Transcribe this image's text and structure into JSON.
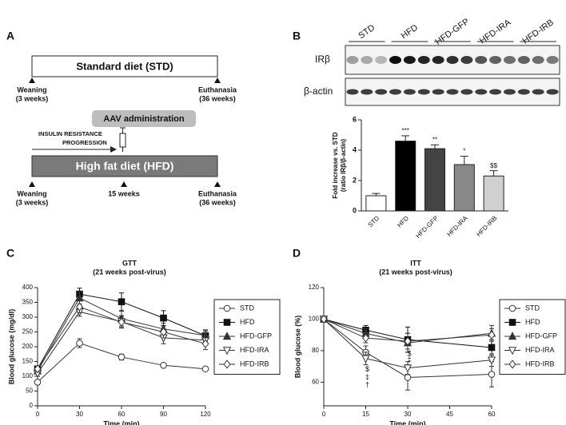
{
  "panel_labels": [
    "A",
    "B",
    "C",
    "D"
  ],
  "diagram": {
    "std_bar": "Standard diet (STD)",
    "std_start": [
      "Weaning",
      "(3 weeks)"
    ],
    "std_end": [
      "Euthanasia",
      "(36 weeks)"
    ],
    "aav": "AAV  administration",
    "progression": [
      "INSULIN RESISTANCE",
      "PROGRESSION"
    ],
    "hfd_bar": "High fat diet (HFD)",
    "hfd_start": [
      "Weaning",
      "(3 weeks)"
    ],
    "hfd_mid": "15 weeks",
    "hfd_end": [
      "Euthanasia",
      "(36 weeks)"
    ]
  },
  "blot": {
    "lanes": [
      "STD",
      "HFD",
      "HFD-GFP",
      "HFD-IRA",
      "HFD-IRB"
    ],
    "rows": [
      "IRβ",
      "β-actin"
    ]
  },
  "chart_data": [
    {
      "type": "bar",
      "ylabel": [
        "Fold increase vs. STD",
        "(ratio IRβ/β-actin)"
      ],
      "categories": [
        "STD",
        "HFD",
        "HFD-GFP",
        "HFD-IRA",
        "HFD-IRB"
      ],
      "values": [
        1.0,
        4.6,
        4.1,
        3.05,
        2.3
      ],
      "errors": [
        0.15,
        0.35,
        0.25,
        0.55,
        0.35
      ],
      "significance": [
        null,
        "***",
        "**",
        "*",
        "$$"
      ],
      "colors": [
        "#ffffff",
        "#000000",
        "#444444",
        "#888888",
        "#d0d0d0"
      ],
      "ylim": [
        0,
        6
      ],
      "yticks": [
        0,
        2,
        4,
        6
      ]
    },
    {
      "type": "line",
      "title": "GTT",
      "subtitle": "(21 weeks post-virus)",
      "xlabel": "Time (min)",
      "ylabel": "Blood glucose  (mg/dl)",
      "x": [
        0,
        30,
        60,
        90,
        120
      ],
      "xlim": [
        0,
        120
      ],
      "xticks": [
        0,
        30,
        60,
        90,
        120
      ],
      "ylim": [
        0,
        400
      ],
      "yticks": [
        0,
        50,
        100,
        150,
        200,
        250,
        300,
        350,
        400
      ],
      "series": [
        {
          "name": "STD",
          "color": "#333333",
          "marker": "circle",
          "filled": false,
          "values": [
            80,
            212,
            165,
            137,
            125
          ],
          "errors": [
            8,
            15,
            10,
            5,
            5
          ]
        },
        {
          "name": "HFD",
          "color": "#111111",
          "marker": "square",
          "filled": true,
          "values": [
            125,
            378,
            352,
            297,
            237
          ],
          "errors": [
            10,
            20,
            30,
            25,
            20
          ]
        },
        {
          "name": "HFD-GFP",
          "color": "#333333",
          "marker": "triangle-up",
          "filled": true,
          "values": [
            118,
            365,
            295,
            260,
            238
          ],
          "errors": [
            10,
            20,
            25,
            20,
            15
          ]
        },
        {
          "name": "HFD-IRA",
          "color": "#333333",
          "marker": "triangle-down",
          "filled": false,
          "values": [
            110,
            318,
            285,
            230,
            222
          ],
          "errors": [
            10,
            15,
            20,
            20,
            15
          ]
        },
        {
          "name": "HFD-IRB",
          "color": "#333333",
          "marker": "diamond",
          "filled": false,
          "values": [
            125,
            335,
            283,
            250,
            210
          ],
          "errors": [
            10,
            20,
            20,
            20,
            20
          ]
        }
      ]
    },
    {
      "type": "line",
      "title": "ITT",
      "subtitle": "(21 weeks post-virus)",
      "xlabel": "Time (min)",
      "ylabel": "Blood glucose (%)",
      "x": [
        0,
        15,
        30,
        60
      ],
      "xlim": [
        0,
        60
      ],
      "xticks": [
        0,
        15,
        30,
        45,
        60
      ],
      "ylim": [
        45,
        120
      ],
      "yticks": [
        60,
        80,
        100,
        120
      ],
      "series": [
        {
          "name": "STD",
          "color": "#333333",
          "marker": "circle",
          "filled": false,
          "values": [
            100,
            79,
            63,
            65
          ],
          "errors": [
            0,
            4,
            8,
            8
          ]
        },
        {
          "name": "HFD",
          "color": "#111111",
          "marker": "square",
          "filled": true,
          "values": [
            100,
            93,
            87,
            82
          ],
          "errors": [
            0,
            3,
            8,
            5
          ]
        },
        {
          "name": "HFD-GFP",
          "color": "#333333",
          "marker": "triangle-up",
          "filled": true,
          "values": [
            100,
            91,
            85,
            91
          ],
          "errors": [
            0,
            3,
            6,
            5
          ]
        },
        {
          "name": "HFD-IRA",
          "color": "#333333",
          "marker": "triangle-down",
          "filled": false,
          "values": [
            100,
            75,
            69,
            74
          ],
          "errors": [
            0,
            4,
            4,
            4
          ]
        },
        {
          "name": "HFD-IRB",
          "color": "#333333",
          "marker": "diamond",
          "filled": false,
          "values": [
            100,
            88,
            86,
            90
          ],
          "errors": [
            0,
            3,
            5,
            4
          ]
        }
      ],
      "annotations": [
        {
          "text": "$",
          "x": 15,
          "y": 68
        },
        {
          "text": "‡",
          "x": 15,
          "y": 63
        },
        {
          "text": "†",
          "x": 15,
          "y": 58
        },
        {
          "text": "‡",
          "x": 30,
          "y": 74
        },
        {
          "text": "$",
          "x": 30,
          "y": 78
        }
      ]
    }
  ]
}
